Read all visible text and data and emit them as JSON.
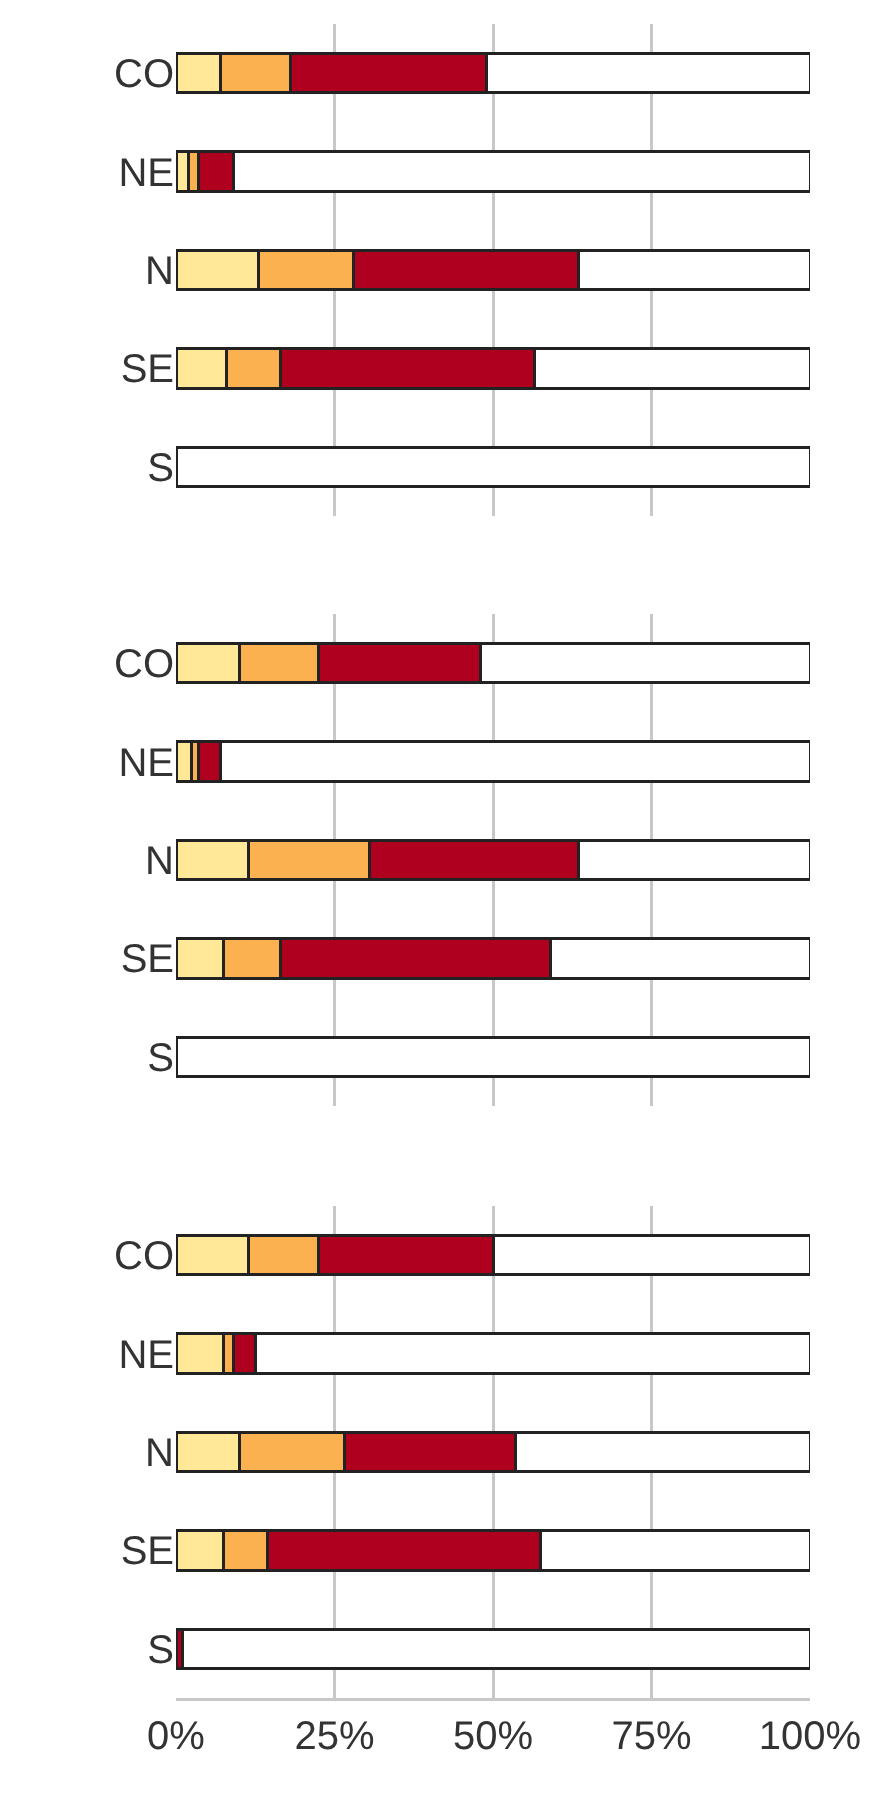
{
  "chart_data": [
    {
      "type": "bar",
      "orientation": "horizontal",
      "stacked": true,
      "grid": "x",
      "tick_labels": "y",
      "categories": [
        "CO",
        "NE",
        "N",
        "SE",
        "S"
      ],
      "xlim": [
        0,
        100
      ],
      "xticks": [
        0,
        25,
        50,
        75,
        100
      ],
      "series": [
        {
          "color": "#ffe999",
          "values": [
            7,
            2,
            13,
            8,
            0
          ]
        },
        {
          "color": "#fbb150",
          "values": [
            11,
            1.5,
            15,
            8.5,
            0
          ]
        },
        {
          "color": "#b00020",
          "values": [
            31,
            5.5,
            35.5,
            40,
            0
          ]
        },
        {
          "color": "#ffffff",
          "values": [
            51,
            91,
            36.5,
            43.5,
            100
          ]
        }
      ]
    },
    {
      "type": "bar",
      "orientation": "horizontal",
      "stacked": true,
      "grid": "x",
      "tick_labels": "y",
      "categories": [
        "CO",
        "NE",
        "N",
        "SE",
        "S"
      ],
      "xlim": [
        0,
        100
      ],
      "xticks": [
        0,
        25,
        50,
        75,
        100
      ],
      "series": [
        {
          "color": "#ffe999",
          "values": [
            10,
            2.5,
            11.5,
            7.5,
            0
          ]
        },
        {
          "color": "#fbb150",
          "values": [
            12.5,
            1,
            19,
            9,
            0
          ]
        },
        {
          "color": "#b00020",
          "values": [
            25.5,
            3.5,
            33,
            42.5,
            0
          ]
        },
        {
          "color": "#ffffff",
          "values": [
            52,
            93,
            36.5,
            41,
            100
          ]
        }
      ]
    },
    {
      "type": "bar",
      "orientation": "horizontal",
      "stacked": true,
      "grid": "x",
      "categories": [
        "CO",
        "NE",
        "N",
        "SE",
        "S"
      ],
      "xlim": [
        0,
        100
      ],
      "xticks": [
        {
          "value": 0,
          "label": "0%"
        },
        {
          "value": 25,
          "label": "25%"
        },
        {
          "value": 50,
          "label": "50%"
        },
        {
          "value": 75,
          "label": "75%"
        },
        {
          "value": 100,
          "label": "100%"
        }
      ],
      "series": [
        {
          "color": "#ffe999",
          "values": [
            11.5,
            7.5,
            10,
            7.5,
            0
          ]
        },
        {
          "color": "#fbb150",
          "values": [
            11,
            1.5,
            16.5,
            7,
            0
          ]
        },
        {
          "color": "#b00020",
          "values": [
            27.5,
            3.5,
            27,
            43,
            1
          ]
        },
        {
          "color": "#ffffff",
          "values": [
            50,
            87.5,
            46.5,
            42.5,
            99
          ]
        }
      ]
    }
  ]
}
